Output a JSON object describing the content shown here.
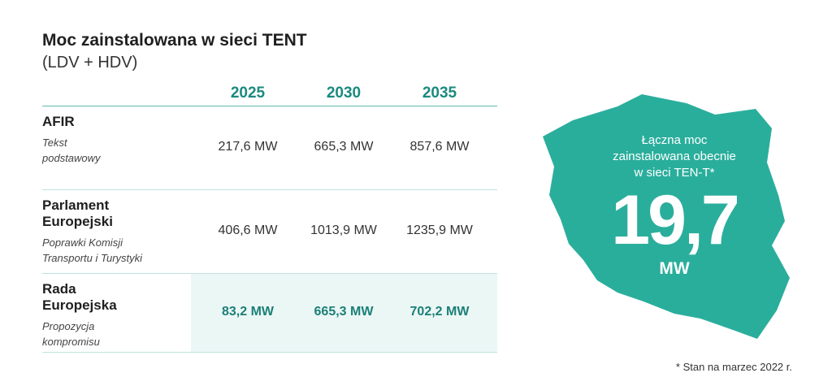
{
  "header": {
    "title": "Moc zainstalowana w sieci TENT",
    "subtitle": "(LDV + HDV)"
  },
  "table": {
    "columns": [
      "2025",
      "2030",
      "2035"
    ],
    "rows": [
      {
        "name": [
          "AFIR"
        ],
        "note": [
          "Tekst",
          "podstawowy"
        ],
        "values": [
          "217,6 MW",
          "665,3 MW",
          "857,6 MW"
        ]
      },
      {
        "name": [
          "Parlament",
          "Europejski"
        ],
        "note": [
          "Poprawki Komisji",
          "Transportu i Turystyki"
        ],
        "values": [
          "406,6 MW",
          "1013,9 MW",
          "1235,9 MW"
        ]
      },
      {
        "name": [
          "Rada",
          "Europejska"
        ],
        "note": [
          "Propozycja",
          "kompromisu"
        ],
        "values": [
          "83,2 MW",
          "665,3 MW",
          "702,2 MW"
        ]
      }
    ]
  },
  "map": {
    "label": [
      "Łączna moc",
      "zainstalowana obecnie",
      "w sieci TEN-T*"
    ],
    "value": "19,7",
    "unit": "MW"
  },
  "footnote": "* Stan na marzec 2022 r."
}
